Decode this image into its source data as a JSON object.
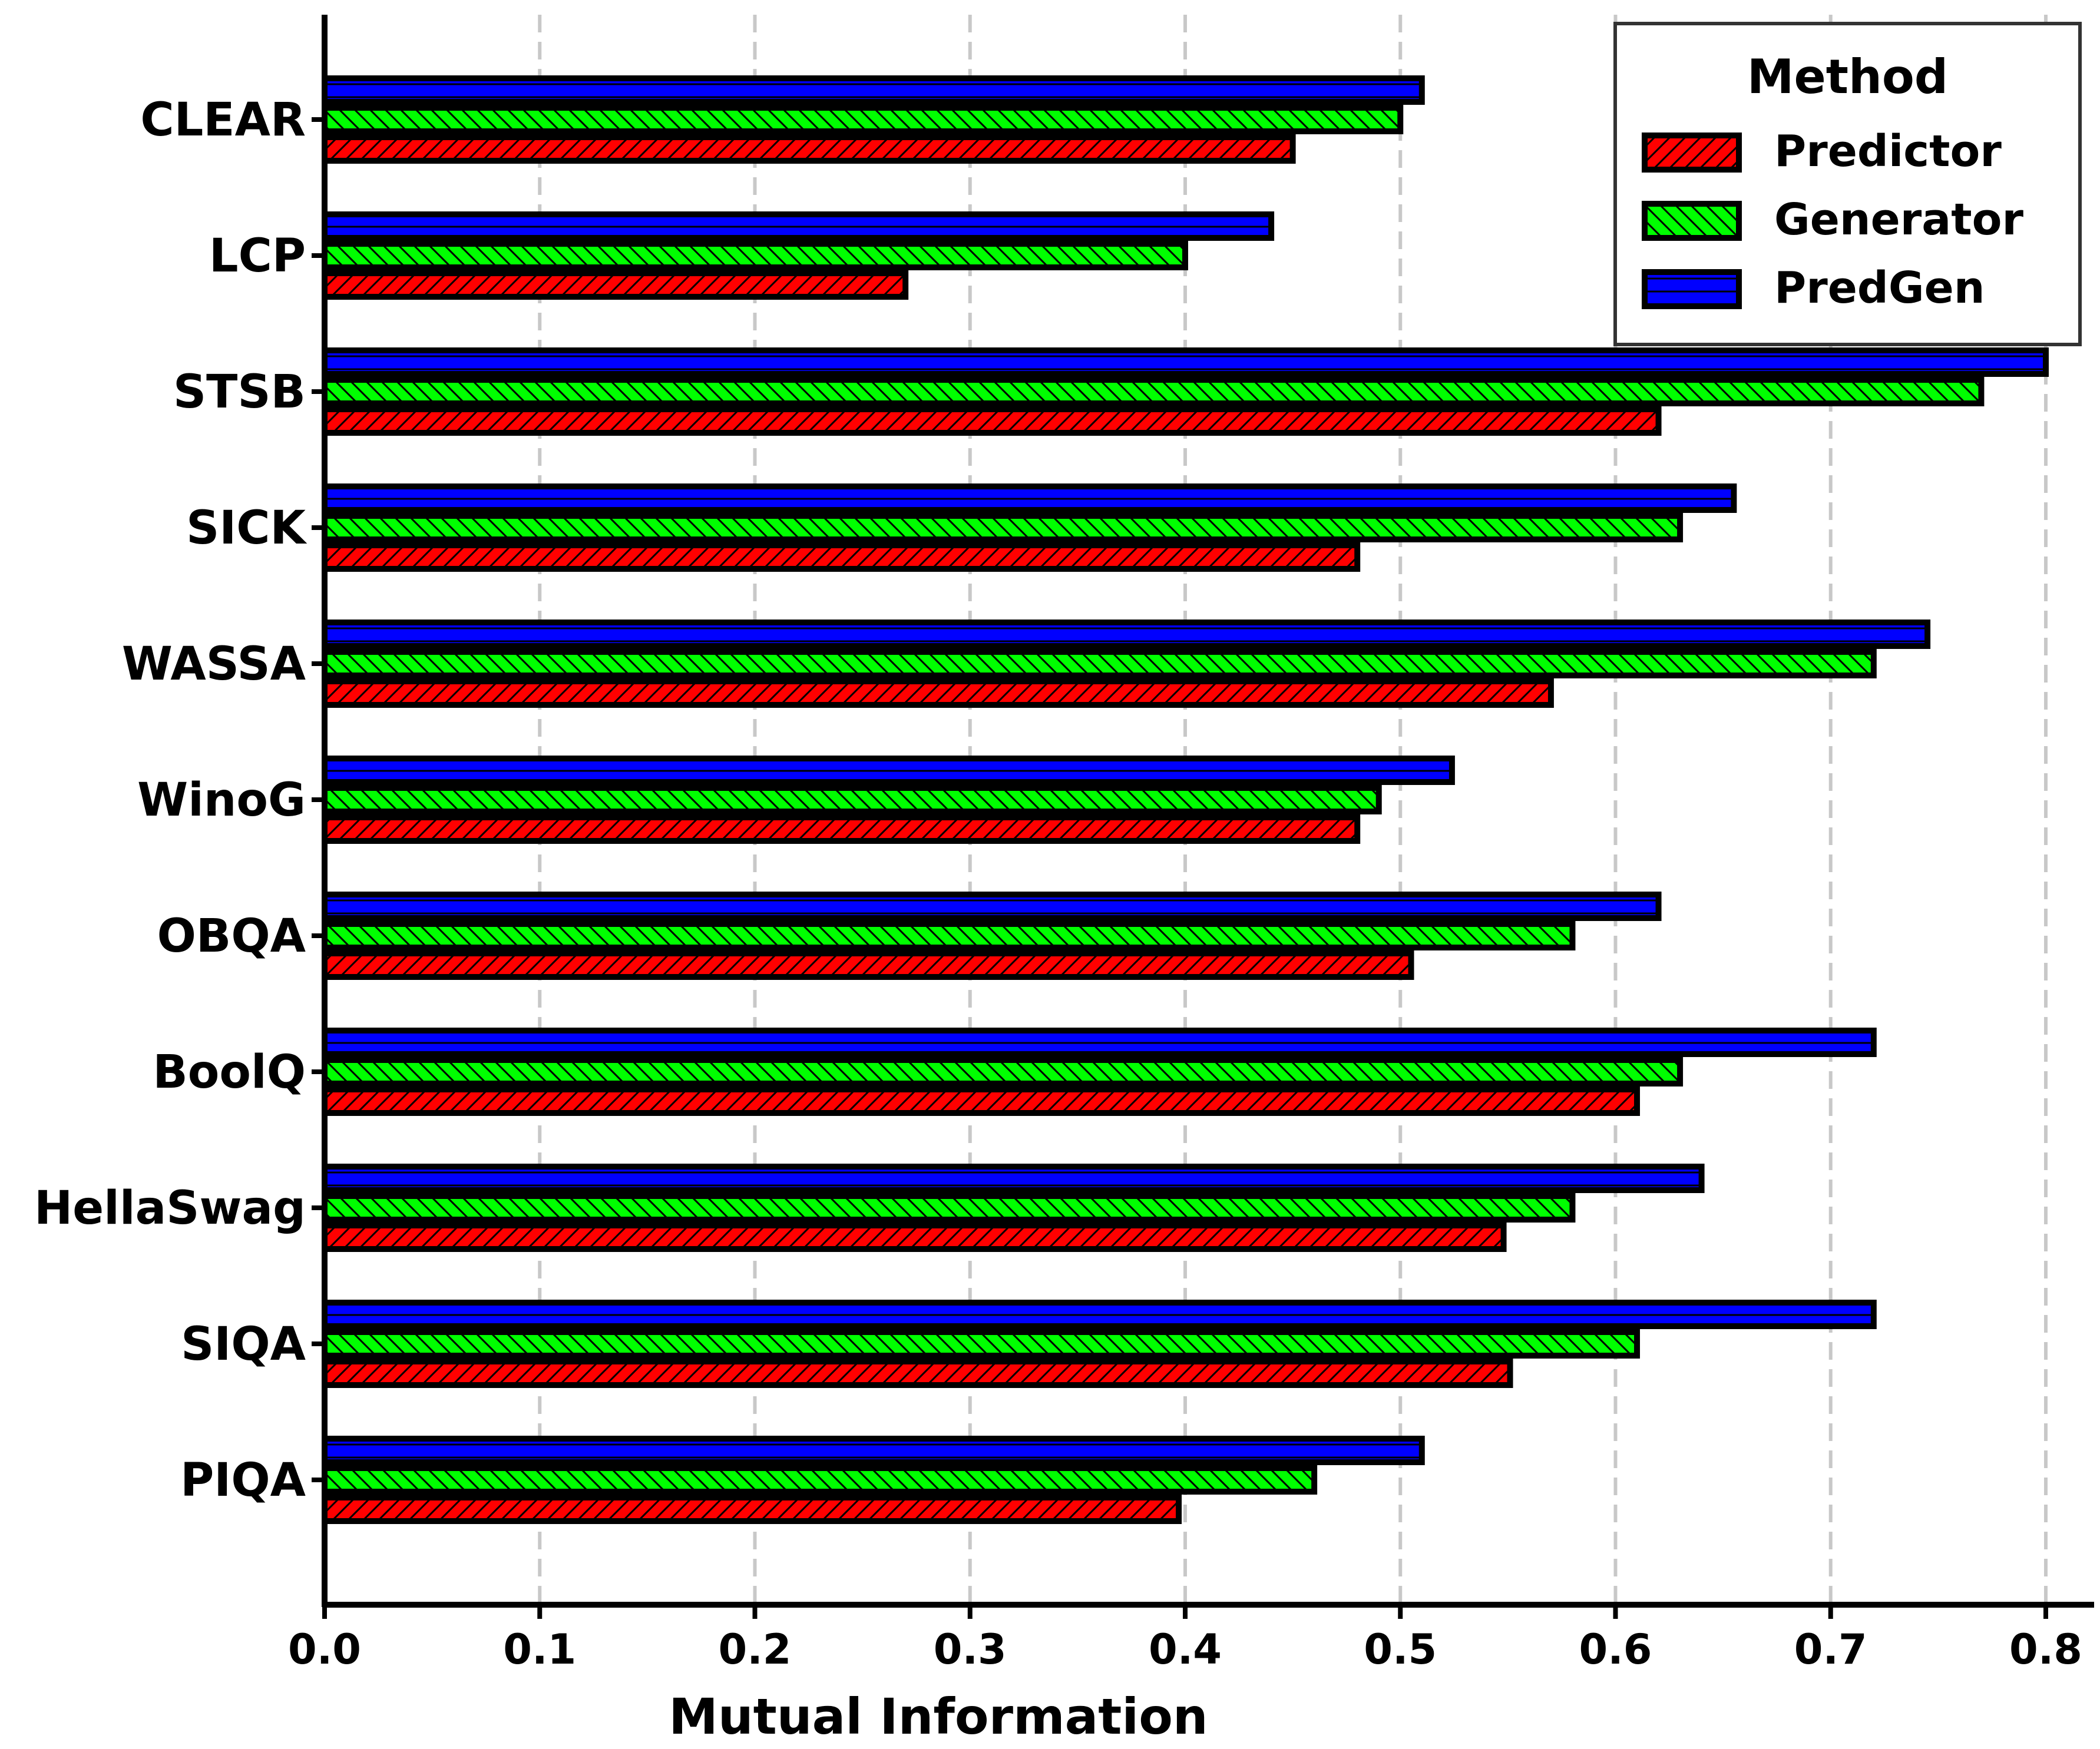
{
  "chart_data": {
    "type": "bar",
    "orientation": "horizontal",
    "categories": [
      "CLEAR",
      "LCP",
      "STSB",
      "SICK",
      "WASSA",
      "WinoG",
      "OBQA",
      "BoolQ",
      "HellaSwag",
      "SIQA",
      "PIQA"
    ],
    "series": [
      {
        "name": "Predictor",
        "color": "#ff0000",
        "hatch": "forward-diagonal",
        "values": [
          0.45,
          0.27,
          0.62,
          0.48,
          0.57,
          0.48,
          0.505,
          0.61,
          0.548,
          0.551,
          0.397
        ]
      },
      {
        "name": "Generator",
        "color": "#00ff00",
        "hatch": "back-diagonal",
        "values": [
          0.5,
          0.4,
          0.77,
          0.63,
          0.72,
          0.49,
          0.58,
          0.63,
          0.58,
          0.61,
          0.46
        ]
      },
      {
        "name": "PredGen",
        "color": "#0000ff",
        "hatch": "horizontal",
        "values": [
          0.51,
          0.44,
          0.8,
          0.655,
          0.745,
          0.524,
          0.62,
          0.72,
          0.64,
          0.72,
          0.51
        ]
      }
    ],
    "xlabel": "Mutual Information",
    "ylabel": "",
    "xlim": [
      0,
      0.82
    ],
    "xticks": [
      "0.0",
      "0.1",
      "0.2",
      "0.3",
      "0.4",
      "0.5",
      "0.6",
      "0.7",
      "0.8"
    ],
    "grid": "vertical dashed",
    "legend": {
      "title": "Method",
      "position": "top-right",
      "entries": [
        "Predictor",
        "Generator",
        "PredGen"
      ]
    }
  }
}
